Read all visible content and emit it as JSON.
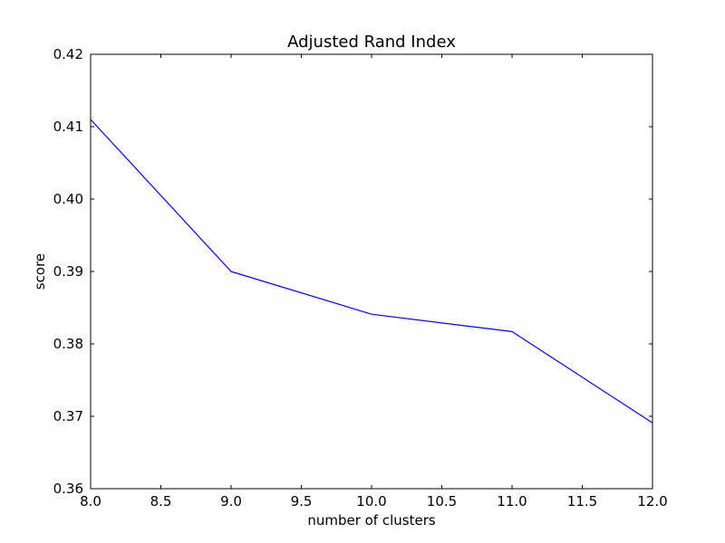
{
  "chart_data": {
    "type": "line",
    "title": "Adjusted Rand Index",
    "xlabel": "number of clusters",
    "ylabel": "score",
    "xlim": [
      8.0,
      12.0
    ],
    "ylim": [
      0.36,
      0.42
    ],
    "xticks": [
      "8.0",
      "8.5",
      "9.0",
      "9.5",
      "10.0",
      "10.5",
      "11.0",
      "11.5",
      "12.0"
    ],
    "yticks": [
      "0.36",
      "0.37",
      "0.38",
      "0.39",
      "0.40",
      "0.41",
      "0.42"
    ],
    "grid": false,
    "series": [
      {
        "color": "#0000ff",
        "x": [
          8,
          9,
          10,
          11,
          12
        ],
        "values": [
          0.411,
          0.39,
          0.3841,
          0.3817,
          0.3691
        ]
      }
    ]
  }
}
